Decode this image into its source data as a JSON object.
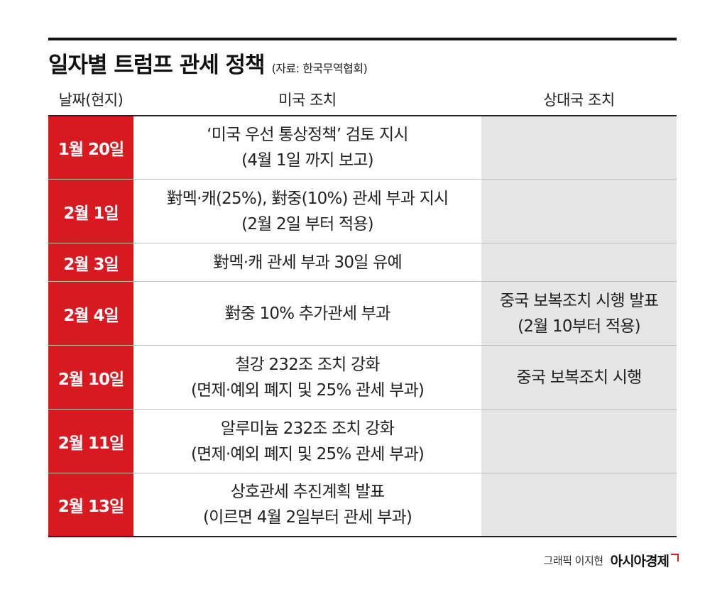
{
  "title": "일자별 트럼프 관세 정책",
  "source": "(자료: 한국무역협회)",
  "columns": {
    "date": "날짜(현지)",
    "us": "미국 조치",
    "counterpart": "상대국 조치"
  },
  "rows": [
    {
      "date": "1월 20일",
      "us": [
        "‘미국 우선 통상정책’ 검토 지시",
        "(4월 1일 까지 보고)"
      ],
      "counterpart": [
        "",
        ""
      ]
    },
    {
      "date": "2월 1일",
      "us": [
        "對멕·캐(25%), 對중(10%) 관세 부과 지시",
        "(2월 2일 부터 적용)"
      ],
      "counterpart": [
        "",
        ""
      ]
    },
    {
      "date": "2월 3일",
      "us": [
        "對멕·캐 관세 부과 30일 유예",
        ""
      ],
      "counterpart": [
        "",
        ""
      ]
    },
    {
      "date": "2월 4일",
      "us": [
        "對중 10% 추가관세 부과",
        ""
      ],
      "counterpart": [
        "중국 보복조치 시행 발표",
        "(2월 10부터 적용)"
      ]
    },
    {
      "date": "2월 10일",
      "us": [
        "철강 232조 조치 강화",
        "(면제·예외 폐지 및 25% 관세 부과)"
      ],
      "counterpart": [
        "중국 보복조치 시행",
        ""
      ]
    },
    {
      "date": "2월 11일",
      "us": [
        "알루미늄 232조 조치 강화",
        "(면제·예외 폐지 및 25% 관세 부과)"
      ],
      "counterpart": [
        "",
        ""
      ]
    },
    {
      "date": "2월 13일",
      "us": [
        "상호관세 추진계획 발표",
        "(이르면 4월 2일부터 관세 부과)"
      ],
      "counterpart": [
        "",
        ""
      ]
    }
  ],
  "footer": {
    "credit": "그래픽 이지현",
    "brand": "아시아경제"
  },
  "colors": {
    "date_cell": "#d71a20",
    "counterpart_cell": "#e5e5e5",
    "rule": "#111111"
  }
}
